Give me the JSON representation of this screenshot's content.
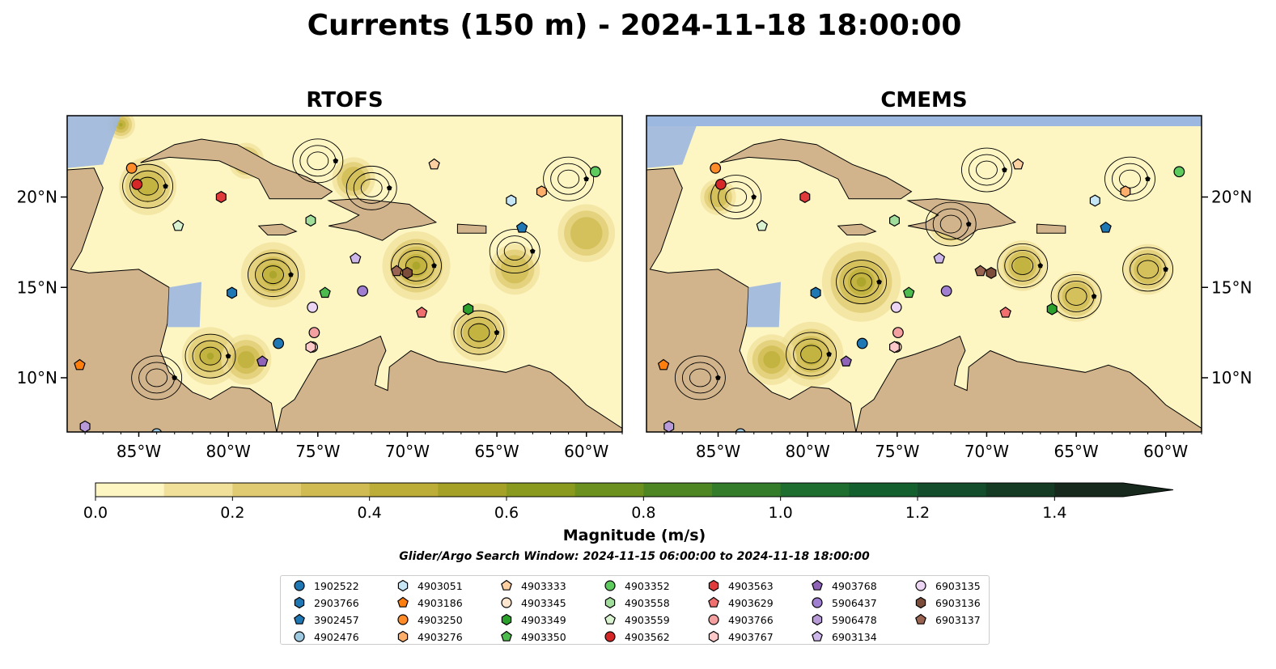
{
  "title": "Currents (150 m) - 2024-11-18 18:00:00",
  "panels": [
    {
      "title": "RTOFS"
    },
    {
      "title": "CMEMS"
    }
  ],
  "map": {
    "lon_range": [
      -89,
      -58
    ],
    "lat_range": [
      7,
      24.5
    ],
    "lon_ticks": [
      -85,
      -80,
      -75,
      -70,
      -65,
      -60
    ],
    "lon_tick_labels": [
      "85°W",
      "80°W",
      "75°W",
      "70°W",
      "65°W",
      "60°W"
    ],
    "lat_ticks": [
      10,
      15,
      20
    ],
    "lat_tick_labels": [
      "10°N",
      "15°N",
      "20°N"
    ],
    "ocean_color": "#9cb7e0",
    "land_color": "#d2b48c"
  },
  "colorbar": {
    "label": "Magnitude (m/s)",
    "ticks": [
      0.0,
      0.2,
      0.4,
      0.6,
      0.8,
      1.0,
      1.2,
      1.4
    ],
    "tick_labels": [
      "0.0",
      "0.2",
      "0.4",
      "0.6",
      "0.8",
      "1.0",
      "1.2",
      "1.4"
    ],
    "levels": [
      0.0,
      0.1,
      0.2,
      0.3,
      0.4,
      0.5,
      0.6,
      0.7,
      0.8,
      0.9,
      1.0,
      1.1,
      1.2,
      1.3,
      1.4,
      1.5
    ],
    "colors": [
      "#fdf6c3",
      "#f0e09a",
      "#e0cb72",
      "#cfbb52",
      "#bcad38",
      "#a5a127",
      "#8a9a1e",
      "#6c911f",
      "#4f8624",
      "#347b2a",
      "#1e6e2f",
      "#145f2e",
      "#144d2b",
      "#163b25",
      "#17291d"
    ],
    "extend": "max"
  },
  "search_window": "Glider/Argo Search Window: 2024-11-15 06:00:00 to 2024-11-18 18:00:00",
  "chart_data": {
    "type": "map",
    "title": "Currents (150 m) - 2024-11-18 18:00:00",
    "panels": [
      "RTOFS",
      "CMEMS"
    ],
    "variable": "current magnitude (m/s) with streamlines",
    "floats": [
      {
        "id": "1902522",
        "marker": "circle",
        "color": "#1f77b4",
        "lon": -77.2,
        "lat": 11.9
      },
      {
        "id": "2903766",
        "marker": "hexagon",
        "color": "#1f77b4",
        "lon": -79.8,
        "lat": 14.7
      },
      {
        "id": "3902457",
        "marker": "pentagon",
        "color": "#1f77b4",
        "lon": -63.6,
        "lat": 18.3
      },
      {
        "id": "4902476",
        "marker": "circle",
        "color": "#9ecae1",
        "lon": -84.0,
        "lat": 6.9
      },
      {
        "id": "4903051",
        "marker": "hexagon",
        "color": "#c6e6f6",
        "lon": -64.2,
        "lat": 19.8
      },
      {
        "id": "4903186",
        "marker": "pentagon",
        "color": "#ff7f0e",
        "lon": -88.3,
        "lat": 10.7
      },
      {
        "id": "4903250",
        "marker": "circle",
        "color": "#ff8c28",
        "lon": -85.4,
        "lat": 21.6
      },
      {
        "id": "4903276",
        "marker": "hexagon",
        "color": "#fdae6b",
        "lon": -62.5,
        "lat": 20.3
      },
      {
        "id": "4903333",
        "marker": "pentagon",
        "color": "#fdd0a2",
        "lon": -68.5,
        "lat": 21.8
      },
      {
        "id": "4903345",
        "marker": "circle",
        "color": "#fee6ce",
        "lon": -75.3,
        "lat": 11.7
      },
      {
        "id": "4903349",
        "marker": "hexagon",
        "color": "#2ca02c",
        "lon": -66.6,
        "lat": 13.8
      },
      {
        "id": "4903350",
        "marker": "pentagon",
        "color": "#4ebb4e",
        "lon": -74.6,
        "lat": 14.7
      },
      {
        "id": "4903352",
        "marker": "circle",
        "color": "#5ecb5e",
        "lon": -59.5,
        "lat": 21.4
      },
      {
        "id": "4903558",
        "marker": "hexagon",
        "color": "#a1dd9b",
        "lon": -75.4,
        "lat": 18.7
      },
      {
        "id": "4903559",
        "marker": "pentagon",
        "color": "#d9f2d0",
        "lon": -82.8,
        "lat": 18.4
      },
      {
        "id": "4903562",
        "marker": "circle",
        "color": "#d62728",
        "lon": -85.1,
        "lat": 20.7
      },
      {
        "id": "4903563",
        "marker": "hexagon",
        "color": "#e03a3a",
        "lon": -80.4,
        "lat": 20.0
      },
      {
        "id": "4903629",
        "marker": "pentagon",
        "color": "#f07070",
        "lon": -69.2,
        "lat": 13.6
      },
      {
        "id": "4903766",
        "marker": "circle",
        "color": "#f4a0a0",
        "lon": -75.2,
        "lat": 12.5
      },
      {
        "id": "4903767",
        "marker": "hexagon",
        "color": "#fcc8c8",
        "lon": -75.4,
        "lat": 11.7
      },
      {
        "id": "4903768",
        "marker": "pentagon",
        "color": "#8e63b8",
        "lon": -78.1,
        "lat": 10.9
      },
      {
        "id": "5906437",
        "marker": "circle",
        "color": "#a07fd0",
        "lon": -72.5,
        "lat": 14.8
      },
      {
        "id": "5906478",
        "marker": "hexagon",
        "color": "#b99ad8",
        "lon": -88.0,
        "lat": 7.3
      },
      {
        "id": "6903134",
        "marker": "pentagon",
        "color": "#cdb6ea",
        "lon": -72.9,
        "lat": 16.6
      },
      {
        "id": "6903135",
        "marker": "circle",
        "color": "#ecd5f3",
        "lon": -75.3,
        "lat": 13.9
      },
      {
        "id": "6903136",
        "marker": "hexagon",
        "color": "#7d4d3b",
        "lon": -70.0,
        "lat": 15.8
      },
      {
        "id": "6903137",
        "marker": "pentagon",
        "color": "#9a6452",
        "lon": -70.6,
        "lat": 15.9
      }
    ]
  }
}
